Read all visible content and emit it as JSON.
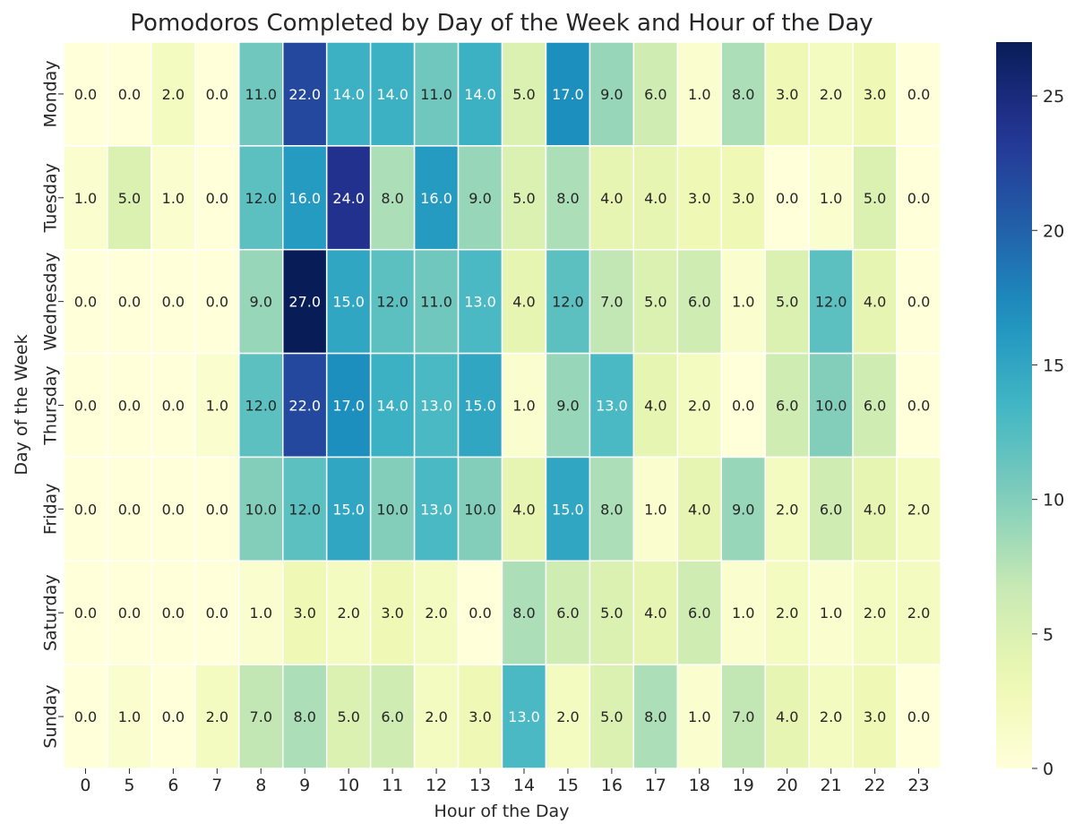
{
  "chart_data": {
    "type": "heatmap",
    "title": "Pomodoros Completed by Day of the Week and Hour of the Day",
    "xlabel": "Hour of the Day",
    "ylabel": "Day of the Week",
    "x_categories": [
      "0",
      "5",
      "6",
      "7",
      "8",
      "9",
      "10",
      "11",
      "12",
      "13",
      "14",
      "15",
      "16",
      "17",
      "18",
      "19",
      "20",
      "21",
      "22",
      "23"
    ],
    "y_categories": [
      "Monday",
      "Tuesday",
      "Wednesday",
      "Thursday",
      "Friday",
      "Saturday",
      "Sunday"
    ],
    "values": [
      [
        0,
        0,
        2,
        0,
        11,
        22,
        14,
        14,
        11,
        14,
        5,
        17,
        9,
        6,
        1,
        8,
        3,
        2,
        3,
        0
      ],
      [
        1,
        5,
        1,
        0,
        12,
        16,
        24,
        8,
        16,
        9,
        5,
        8,
        4,
        4,
        3,
        3,
        0,
        1,
        5,
        0
      ],
      [
        0,
        0,
        0,
        0,
        9,
        27,
        15,
        12,
        11,
        13,
        4,
        12,
        7,
        5,
        6,
        1,
        5,
        12,
        4,
        0
      ],
      [
        0,
        0,
        0,
        1,
        12,
        22,
        17,
        14,
        13,
        15,
        1,
        9,
        13,
        4,
        2,
        0,
        6,
        10,
        6,
        0
      ],
      [
        0,
        0,
        0,
        0,
        10,
        12,
        15,
        10,
        13,
        10,
        4,
        15,
        8,
        1,
        4,
        9,
        2,
        6,
        4,
        2
      ],
      [
        0,
        0,
        0,
        0,
        1,
        3,
        2,
        3,
        2,
        0,
        8,
        6,
        5,
        4,
        6,
        1,
        2,
        1,
        2,
        2
      ],
      [
        0,
        1,
        0,
        2,
        7,
        8,
        5,
        6,
        2,
        3,
        13,
        2,
        5,
        8,
        1,
        7,
        4,
        2,
        3,
        0
      ]
    ],
    "value_format": "one decimal",
    "colormap": "YlGnBu",
    "color_range": [
      0,
      27
    ],
    "colorbar_ticks": [
      0,
      5,
      10,
      15,
      20,
      25
    ],
    "cell_border_color": "#ffffff"
  }
}
